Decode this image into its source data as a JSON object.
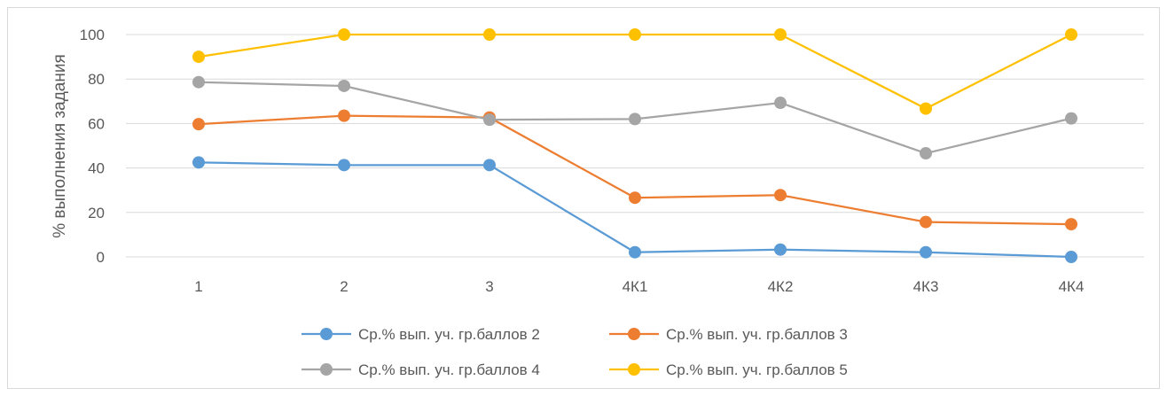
{
  "chart_data": {
    "type": "line",
    "title": "",
    "xlabel": "",
    "ylabel": "% выполнения задания",
    "categories": [
      "1",
      "2",
      "3",
      "4К1",
      "4К2",
      "4К3",
      "4К4"
    ],
    "ylim": [
      0,
      100
    ],
    "yticks": [
      0,
      20,
      40,
      60,
      80,
      100
    ],
    "grid": "horizontal",
    "legend_position": "bottom",
    "series": [
      {
        "name": "Ср.% вып. уч. гр.баллов 2",
        "color": "#5b9bd5",
        "values": [
          42.5,
          41.3,
          41.3,
          2.1,
          3.3,
          2.1,
          0
        ]
      },
      {
        "name": "Ср.% вып. уч. гр.баллов 3",
        "color": "#ed7d31",
        "values": [
          59.7,
          63.5,
          62.7,
          26.6,
          27.8,
          15.7,
          14.7
        ]
      },
      {
        "name": "Ср.% вып. уч. гр.баллов 4",
        "color": "#a5a5a5",
        "values": [
          78.6,
          76.9,
          61.7,
          62.0,
          69.3,
          46.6,
          62.3
        ]
      },
      {
        "name": "Ср.% вып. уч. гр.баллов 5",
        "color": "#ffc000",
        "values": [
          90,
          100,
          100,
          100,
          100,
          66.7,
          100
        ]
      }
    ]
  }
}
